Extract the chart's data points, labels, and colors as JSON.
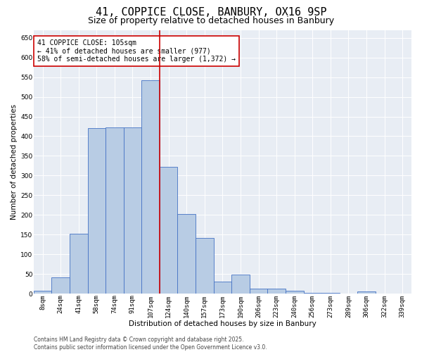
{
  "title_line1": "41, COPPICE CLOSE, BANBURY, OX16 9SP",
  "title_line2": "Size of property relative to detached houses in Banbury",
  "xlabel": "Distribution of detached houses by size in Banbury",
  "ylabel": "Number of detached properties",
  "categories": [
    "8sqm",
    "24sqm",
    "41sqm",
    "58sqm",
    "74sqm",
    "91sqm",
    "107sqm",
    "124sqm",
    "140sqm",
    "157sqm",
    "173sqm",
    "190sqm",
    "206sqm",
    "223sqm",
    "240sqm",
    "256sqm",
    "273sqm",
    "289sqm",
    "306sqm",
    "322sqm",
    "339sqm"
  ],
  "values": [
    8,
    42,
    153,
    420,
    422,
    422,
    542,
    323,
    203,
    141,
    30,
    48,
    13,
    13,
    8,
    3,
    2,
    0,
    5,
    0,
    0
  ],
  "bar_color": "#b8cce4",
  "bar_edge_color": "#4472c4",
  "vline_x": 6.5,
  "vline_color": "#cc0000",
  "annotation_text": "41 COPPICE CLOSE: 105sqm\n← 41% of detached houses are smaller (977)\n58% of semi-detached houses are larger (1,372) →",
  "annotation_box_color": "#ffffff",
  "annotation_box_edge": "#cc0000",
  "ylim": [
    0,
    670
  ],
  "yticks": [
    0,
    50,
    100,
    150,
    200,
    250,
    300,
    350,
    400,
    450,
    500,
    550,
    600,
    650
  ],
  "background_color": "#e8edf4",
  "footer_text": "Contains HM Land Registry data © Crown copyright and database right 2025.\nContains public sector information licensed under the Open Government Licence v3.0.",
  "title_fontsize": 11,
  "subtitle_fontsize": 9,
  "axis_label_fontsize": 7.5,
  "tick_fontsize": 6.5,
  "annotation_fontsize": 7,
  "footer_fontsize": 5.5
}
